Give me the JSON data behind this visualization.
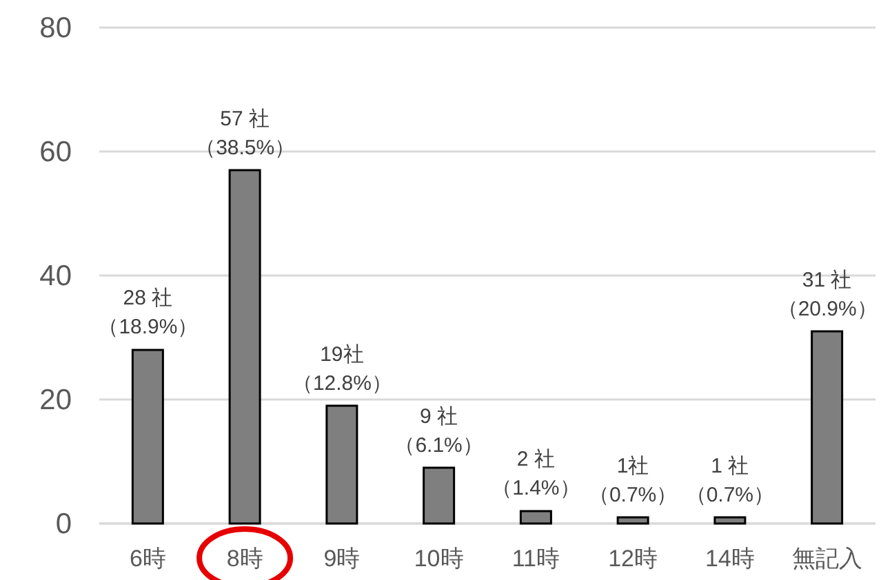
{
  "chart_data": {
    "type": "bar",
    "categories": [
      "6時",
      "8時",
      "9時",
      "10時",
      "11時",
      "12時",
      "14時",
      "無記入"
    ],
    "values": [
      28,
      57,
      19,
      9,
      2,
      1,
      1,
      31
    ],
    "value_labels": [
      "28 社（18.9%）",
      "57 社（38.5%）",
      "19社（12.8%）",
      "9 社（6.1%）",
      "2 社（1.4%）",
      "1社（0.7%）",
      "1 社（0.7%）",
      "31 社（20.9%）"
    ],
    "color": "#7f7f7f",
    "ylim": [
      0,
      80
    ],
    "yticks": [
      0,
      20,
      40,
      60,
      80
    ],
    "grid": "y"
  }
}
